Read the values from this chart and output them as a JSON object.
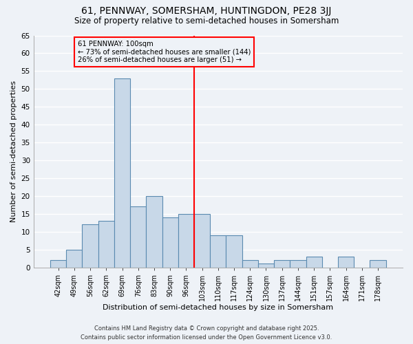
{
  "title1": "61, PENNWAY, SOMERSHAM, HUNTINGDON, PE28 3JJ",
  "title2": "Size of property relative to semi-detached houses in Somersham",
  "xlabel": "Distribution of semi-detached houses by size in Somersham",
  "ylabel": "Number of semi-detached properties",
  "bar_labels": [
    "42sqm",
    "49sqm",
    "56sqm",
    "62sqm",
    "69sqm",
    "76sqm",
    "83sqm",
    "90sqm",
    "96sqm",
    "103sqm",
    "110sqm",
    "117sqm",
    "124sqm",
    "130sqm",
    "137sqm",
    "144sqm",
    "151sqm",
    "157sqm",
    "164sqm",
    "171sqm",
    "178sqm"
  ],
  "bar_values": [
    2,
    5,
    12,
    13,
    53,
    17,
    20,
    14,
    15,
    15,
    9,
    9,
    2,
    1,
    2,
    2,
    3,
    0,
    3,
    0,
    2
  ],
  "bar_color": "#c8d8e8",
  "bar_edge_color": "#5a8ab0",
  "vline_x": 8.5,
  "annotation_title": "61 PENNWAY: 100sqm",
  "annotation_line1": "← 73% of semi-detached houses are smaller (144)",
  "annotation_line2": "26% of semi-detached houses are larger (51) →",
  "ylim": [
    0,
    65
  ],
  "yticks": [
    0,
    5,
    10,
    15,
    20,
    25,
    30,
    35,
    40,
    45,
    50,
    55,
    60,
    65
  ],
  "footer1": "Contains HM Land Registry data © Crown copyright and database right 2025.",
  "footer2": "Contains public sector information licensed under the Open Government Licence v3.0.",
  "bg_color": "#eef2f7"
}
